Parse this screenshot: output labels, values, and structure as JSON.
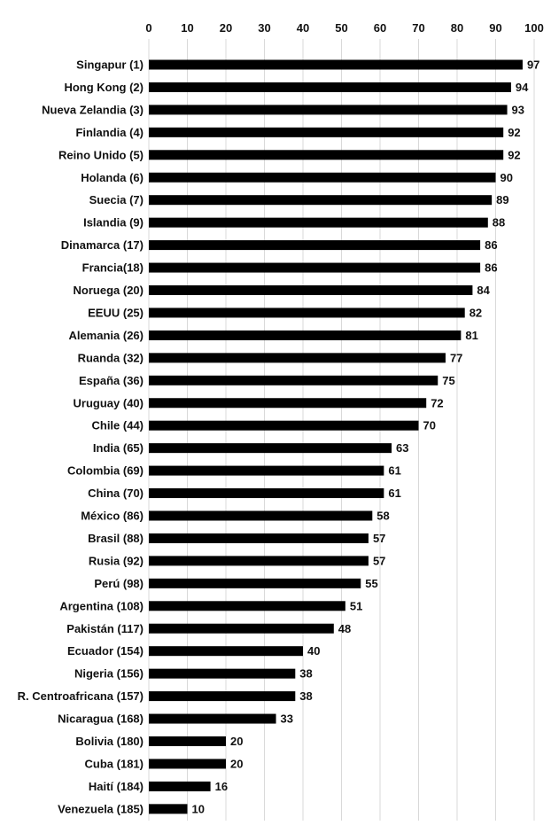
{
  "chart_data": {
    "type": "bar",
    "orientation": "horizontal",
    "title": "",
    "xlabel": "",
    "ylabel": "",
    "xlim": [
      0,
      100
    ],
    "x_ticks": [
      0,
      10,
      20,
      30,
      40,
      50,
      60,
      70,
      80,
      90,
      100
    ],
    "x_axis_position": "top",
    "grid": true,
    "legend": "none",
    "bar_color": "#000000",
    "categories": [
      "Singapur (1)",
      "Hong Kong (2)",
      "Nueva Zelandia (3)",
      "Finlandia (4)",
      "Reino Unido (5)",
      "Holanda (6)",
      "Suecia (7)",
      "Islandia (9)",
      "Dinamarca (17)",
      "Francia(18)",
      "Noruega (20)",
      "EEUU (25)",
      "Alemania (26)",
      "Ruanda (32)",
      "España (36)",
      "Uruguay (40)",
      "Chile (44)",
      "India (65)",
      "Colombia (69)",
      "China (70)",
      "México (86)",
      "Brasil (88)",
      "Rusia (92)",
      "Perú (98)",
      "Argentina (108)",
      "Pakistán (117)",
      "Ecuador (154)",
      "Nigeria (156)",
      "R. Centroafricana (157)",
      "Nicaragua (168)",
      "Bolivia (180)",
      "Cuba (181)",
      "Haití (184)",
      "Venezuela (185)"
    ],
    "values": [
      97,
      94,
      93,
      92,
      92,
      90,
      89,
      88,
      86,
      86,
      84,
      82,
      81,
      77,
      75,
      72,
      70,
      63,
      61,
      61,
      58,
      57,
      57,
      55,
      51,
      48,
      40,
      38,
      38,
      33,
      20,
      20,
      16,
      10
    ]
  }
}
